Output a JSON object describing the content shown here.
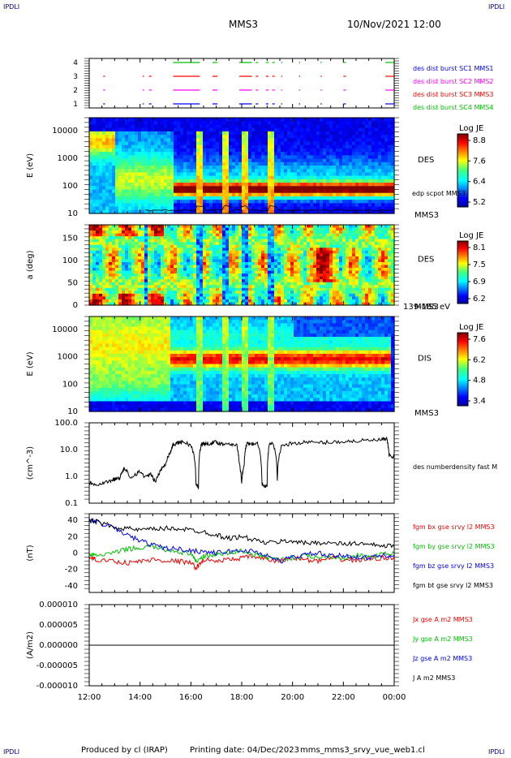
{
  "header": {
    "corner_left_top": "IPDLI",
    "corner_right_top": "IPDLI",
    "spacecraft": "MMS3",
    "date": "10/Nov/2021 12:00"
  },
  "footer": {
    "produced": "Produced by cl (IRAP)",
    "printing": "Printing date: 04/Dec/2023",
    "script": "mms_mms3_srvy_vue_web1.cl",
    "corner_left_bottom": "IPDLI",
    "corner_right_bottom": "IPDLI"
  },
  "time_axis": {
    "ticks": [
      "12:00",
      "14:00",
      "16:00",
      "18:00",
      "20:00",
      "22:00",
      "00:00"
    ],
    "hours": [
      0,
      2,
      4,
      6,
      8,
      10,
      12
    ]
  },
  "chart_data": [
    {
      "type": "bar",
      "id": "burst-availability",
      "yticks": [
        "4",
        "3",
        "2",
        "1"
      ],
      "series": [
        {
          "name": "des dist burst SC1 MMS1",
          "color": "#0000ff",
          "level": 1,
          "intervals": [
            [
              0.55,
              0.62
            ],
            [
              2.1,
              2.15
            ],
            [
              2.35,
              2.45
            ],
            [
              3.3,
              4.35
            ],
            [
              4.85,
              5.05
            ],
            [
              5.9,
              6.4
            ],
            [
              6.55,
              6.65
            ],
            [
              6.95,
              7.05
            ],
            [
              7.2,
              7.3
            ],
            [
              7.55,
              7.6
            ],
            [
              8.25,
              8.3
            ],
            [
              9.1,
              9.15
            ],
            [
              10.0,
              10.1
            ],
            [
              11.65,
              12.0
            ]
          ]
        },
        {
          "name": "des dist burst SC2 MMS2",
          "color": "#ff00ff",
          "level": 2,
          "intervals": [
            [
              0.55,
              0.62
            ],
            [
              2.1,
              2.15
            ],
            [
              2.35,
              2.45
            ],
            [
              3.3,
              4.35
            ],
            [
              4.85,
              5.05
            ],
            [
              5.9,
              6.4
            ],
            [
              6.55,
              6.65
            ],
            [
              6.95,
              7.05
            ],
            [
              7.2,
              7.3
            ],
            [
              7.55,
              7.6
            ],
            [
              8.25,
              8.3
            ],
            [
              9.1,
              9.15
            ],
            [
              10.0,
              10.1
            ],
            [
              11.65,
              12.0
            ]
          ]
        },
        {
          "name": "des dist burst SC3 MMS3",
          "color": "#ff0000",
          "level": 3,
          "intervals": [
            [
              0.55,
              0.62
            ],
            [
              2.1,
              2.15
            ],
            [
              2.35,
              2.45
            ],
            [
              3.3,
              4.35
            ],
            [
              4.85,
              5.05
            ],
            [
              5.9,
              6.4
            ],
            [
              6.55,
              6.65
            ],
            [
              6.95,
              7.05
            ],
            [
              7.2,
              7.3
            ],
            [
              7.55,
              7.6
            ],
            [
              8.25,
              8.3
            ],
            [
              9.1,
              9.15
            ],
            [
              10.0,
              10.1
            ],
            [
              11.65,
              12.0
            ]
          ]
        },
        {
          "name": "des dist burst SC4 MMS4",
          "color": "#00c000",
          "level": 4,
          "intervals": [
            [
              3.3,
              4.35
            ],
            [
              4.85,
              5.05
            ],
            [
              5.9,
              6.4
            ],
            [
              6.55,
              6.65
            ],
            [
              6.95,
              7.05
            ],
            [
              7.2,
              7.3
            ],
            [
              7.55,
              7.6
            ],
            [
              8.25,
              8.3
            ],
            [
              9.1,
              9.15
            ],
            [
              10.0,
              10.1
            ],
            [
              11.65,
              12.0
            ]
          ]
        }
      ]
    },
    {
      "type": "heatmap",
      "id": "des-energy",
      "ylabel": "E (eV)",
      "yticks": [
        "10000",
        "1000",
        "100",
        "10"
      ],
      "ylim": [
        10,
        30000
      ],
      "yscale": "log",
      "label": "DES",
      "sublabel": "edp scpot MMS3",
      "sc": "MMS3",
      "colorbar": {
        "title": "Log JE",
        "ticks": [
          "8.8",
          "7.6",
          "6.4",
          "5.2"
        ],
        "range": [
          5.2,
          9.0
        ]
      }
    },
    {
      "type": "heatmap",
      "id": "des-pitch",
      "ylabel": "a (deg)",
      "yticks": [
        "150",
        "100",
        "50",
        "0"
      ],
      "ylim": [
        0,
        180
      ],
      "label": "DES",
      "sc": "MMS3",
      "energy_range": "139-185 eV",
      "colorbar": {
        "title": "Log JE",
        "ticks": [
          "8.1",
          "7.5",
          "6.9",
          "6.2"
        ],
        "range": [
          6.2,
          8.3
        ]
      }
    },
    {
      "type": "heatmap",
      "id": "dis-energy",
      "ylabel": "E (eV)",
      "yticks": [
        "10000",
        "1000",
        "100",
        "10"
      ],
      "ylim": [
        10,
        30000
      ],
      "yscale": "log",
      "label": "DIS",
      "sc": "MMS3",
      "colorbar": {
        "title": "Log JE",
        "ticks": [
          "7.6",
          "6.2",
          "4.8",
          "3.4"
        ],
        "range": [
          3.4,
          8.0
        ]
      }
    },
    {
      "type": "line",
      "id": "density",
      "ylabel": "(cm^-3)",
      "yticks": [
        "100.0",
        "10.0",
        "1.0",
        "0.1"
      ],
      "ylim": [
        0.1,
        100
      ],
      "yscale": "log",
      "series": [
        {
          "name": "des numberdensity fast M",
          "color": "#000000",
          "x": [
            0,
            0.3,
            0.6,
            0.9,
            1.0,
            1.2,
            1.4,
            1.6,
            1.8,
            2.0,
            2.2,
            2.4,
            2.6,
            2.8,
            3.0,
            3.2,
            3.3,
            3.5,
            3.7,
            4.0,
            4.2,
            4.3,
            4.4,
            4.5,
            4.6,
            4.8,
            5.0,
            5.2,
            5.5,
            5.8,
            5.9,
            6.0,
            6.1,
            6.2,
            6.4,
            6.6,
            6.8,
            7.0,
            7.1,
            7.2,
            7.4,
            7.6,
            8.0,
            8.5,
            9.0,
            9.5,
            10.0,
            10.5,
            11.0,
            11.5,
            11.7,
            11.8,
            12.0
          ],
          "y": [
            0.6,
            0.5,
            0.6,
            0.7,
            0.8,
            0.9,
            2.0,
            0.8,
            1.2,
            1.5,
            0.9,
            1.2,
            0.6,
            1.5,
            3.0,
            8.0,
            15,
            18,
            20,
            14,
            0.5,
            0.4,
            15,
            17,
            16,
            18,
            19,
            16,
            17,
            15,
            3.0,
            0.5,
            3.0,
            17,
            16,
            18,
            0.5,
            0.4,
            16,
            18,
            0.6,
            15,
            17,
            19,
            18,
            19,
            20,
            21,
            22,
            23,
            25,
            6.0,
            5.5
          ]
        }
      ]
    },
    {
      "type": "line",
      "id": "magnetic-field",
      "ylabel": "(nT)",
      "yticks": [
        "40",
        "20",
        "0",
        "-20",
        "-40"
      ],
      "ylim": [
        -48,
        48
      ],
      "series": [
        {
          "name": "fgm bx gse srvy l2 MMS3",
          "color": "#ff0000",
          "x": [
            0,
            0.3,
            1,
            1.5,
            2,
            2.5,
            3,
            3.5,
            4,
            4.2,
            4.5,
            5,
            5.5,
            6,
            6.5,
            7,
            7.5,
            8,
            8.5,
            9,
            9.5,
            10,
            10.5,
            11,
            11.5,
            12
          ],
          "y": [
            -6,
            -8,
            -10,
            -12,
            -10,
            -8,
            -9,
            -10,
            -12,
            -18,
            -8,
            -10,
            -8,
            -6,
            -4,
            -8,
            -10,
            -5,
            -8,
            -10,
            -6,
            -8,
            -9,
            -7,
            -6,
            -5
          ]
        },
        {
          "name": "fgm by gse srvy l2 MMS3",
          "color": "#00c000",
          "x": [
            0,
            0.3,
            1,
            1.5,
            2,
            2.5,
            3,
            3.5,
            4,
            4.2,
            4.5,
            5,
            5.5,
            6,
            6.5,
            7,
            7.5,
            8,
            8.5,
            9,
            9.5,
            10,
            10.5,
            11,
            11.5,
            12
          ],
          "y": [
            -2,
            -3,
            0,
            5,
            6,
            8,
            4,
            2,
            -2,
            -10,
            -4,
            -2,
            0,
            3,
            -2,
            -5,
            -8,
            -6,
            -3,
            -5,
            -4,
            -6,
            -3,
            -5,
            -2,
            0
          ]
        },
        {
          "name": "fgm bz gse srvy l2 MMS3",
          "color": "#0000ff",
          "x": [
            0,
            0.3,
            1,
            1.5,
            2,
            2.5,
            3,
            3.5,
            4,
            4.5,
            5,
            5.5,
            6,
            6.5,
            7,
            7.5,
            8,
            8.5,
            9,
            9.5,
            10,
            10.5,
            11,
            11.5,
            12
          ],
          "y": [
            40,
            38,
            30,
            22,
            15,
            10,
            6,
            5,
            3,
            2,
            0,
            2,
            3,
            2,
            -3,
            -10,
            -5,
            -2,
            0,
            -4,
            -3,
            -5,
            -6,
            -3,
            -2
          ]
        },
        {
          "name": "fgm bt gse srvy l2 MMS3",
          "color": "#000000",
          "x": [
            0,
            0.3,
            1,
            1.5,
            2,
            2.5,
            3,
            3.5,
            4,
            4.5,
            5,
            5.5,
            6,
            6.5,
            7,
            7.5,
            8,
            8.5,
            9,
            9.5,
            10,
            10.5,
            11,
            11.5,
            12
          ],
          "y": [
            40,
            38,
            32,
            30,
            28,
            29,
            30,
            30,
            28,
            26,
            22,
            18,
            20,
            16,
            12,
            14,
            15,
            12,
            13,
            12,
            11,
            12,
            10,
            9,
            8
          ]
        }
      ]
    },
    {
      "type": "line",
      "id": "current-density",
      "ylabel": "(A/m2)",
      "yticks": [
        "0.000010",
        "0.000005",
        "0.000000",
        "-0.000005",
        "-0.000010"
      ],
      "ylim": [
        -1e-05,
        1e-05
      ],
      "series": [
        {
          "name": "Jx gse A m2 MMS3",
          "color": "#ff0000",
          "x": [
            0,
            12
          ],
          "y": [
            0,
            0
          ]
        },
        {
          "name": "Jy gse A m2 MMS3",
          "color": "#00c000",
          "x": [
            0,
            12
          ],
          "y": [
            0,
            0
          ]
        },
        {
          "name": "Jz gse A m2 MMS3",
          "color": "#0000ff",
          "x": [
            0,
            12
          ],
          "y": [
            0,
            0
          ]
        },
        {
          "name": "J A m2 MMS3",
          "color": "#000000",
          "x": [
            0,
            12
          ],
          "y": [
            0,
            0
          ]
        }
      ]
    }
  ]
}
